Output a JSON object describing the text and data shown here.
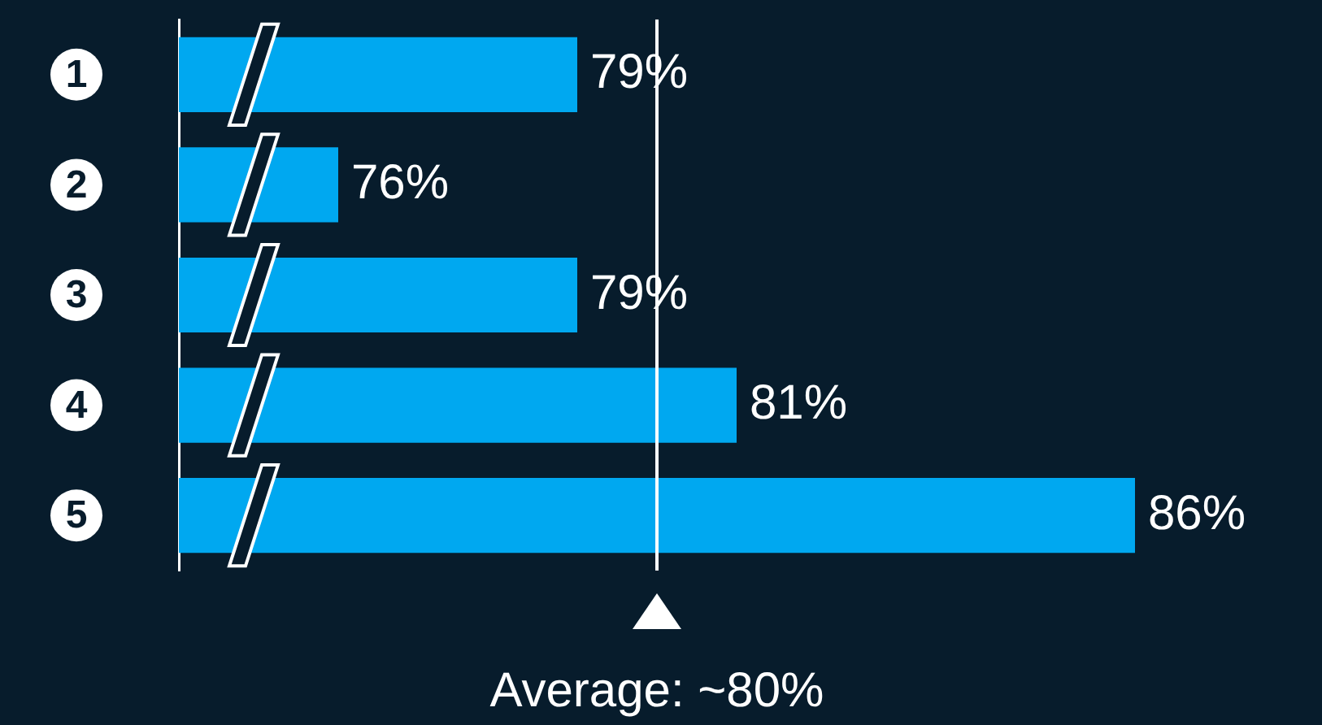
{
  "chart_data": {
    "type": "bar",
    "orientation": "horizontal",
    "categories": [
      "1",
      "2",
      "3",
      "4",
      "5"
    ],
    "values": [
      79,
      76,
      79,
      81,
      86
    ],
    "color": "#00a8f0",
    "tick_labels": "y",
    "value_labels": [
      "79%",
      "76%",
      "79%",
      "81%",
      "86%"
    ],
    "ref_lines": [
      {
        "axis": "x",
        "value": 80,
        "label": "Average: ~80%",
        "color": "#ffffff",
        "line_style": "solid"
      }
    ]
  }
}
